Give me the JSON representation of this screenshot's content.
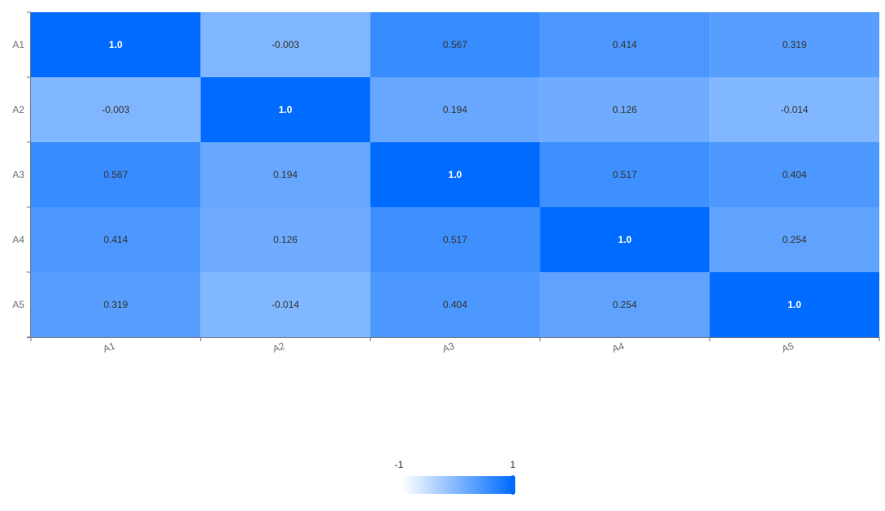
{
  "chart_data": {
    "type": "heatmap",
    "x_categories": [
      "A1",
      "A2",
      "A3",
      "A4",
      "A5"
    ],
    "y_categories": [
      "A1",
      "A2",
      "A3",
      "A4",
      "A5"
    ],
    "values": [
      [
        1.0,
        -0.003,
        0.567,
        0.414,
        0.319
      ],
      [
        -0.003,
        1.0,
        0.194,
        0.126,
        -0.014
      ],
      [
        0.567,
        0.194,
        1.0,
        0.517,
        0.404
      ],
      [
        0.414,
        0.126,
        0.517,
        1.0,
        0.254
      ],
      [
        0.319,
        -0.014,
        0.404,
        0.254,
        1.0
      ]
    ],
    "value_labels": [
      [
        "1.0",
        "-0.003",
        "0.567",
        "0.414",
        "0.319"
      ],
      [
        "-0.003",
        "1.0",
        "0.194",
        "0.126",
        "-0.014"
      ],
      [
        "0.567",
        "0.194",
        "1.0",
        "0.517",
        "0.404"
      ],
      [
        "0.414",
        "0.126",
        "0.517",
        "1.0",
        "0.254"
      ],
      [
        "0.319",
        "-0.014",
        "0.404",
        "0.254",
        "1.0"
      ]
    ],
    "color_scale": {
      "min": -1,
      "max": 1,
      "min_label": "-1",
      "max_label": "1",
      "min_color": "#ffffff",
      "max_color": "#006cff",
      "selected_max": 1
    },
    "legend_position": "bottom-center",
    "grid": false
  }
}
